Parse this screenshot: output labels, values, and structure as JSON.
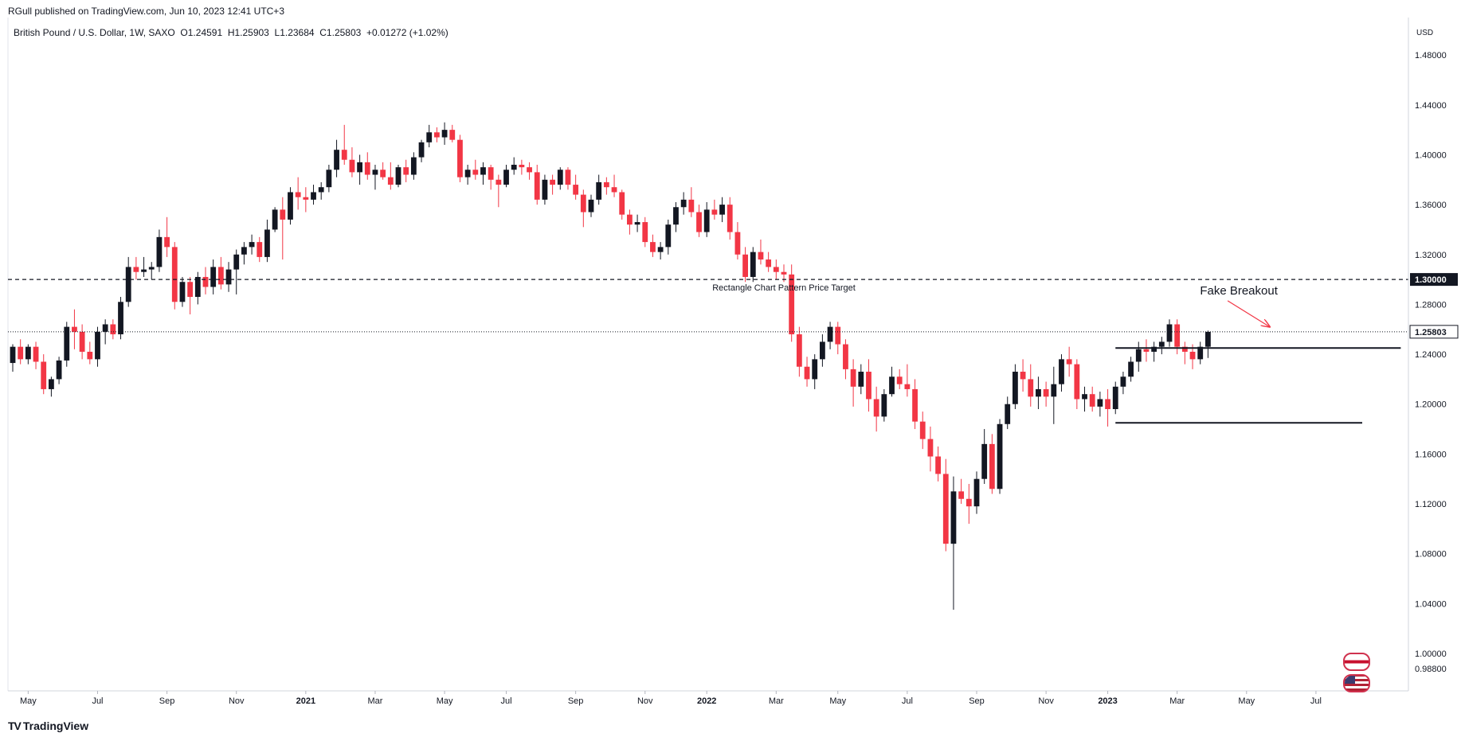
{
  "header": {
    "publisher": "RGull published on TradingView.com, Jun 10, 2023 12:41 UTC+3"
  },
  "legend": {
    "symbol": "British Pound / U.S. Dollar, 1W, SAXO",
    "open": "O1.24591",
    "high": "H1.25903",
    "low": "L1.23684",
    "close": "C1.25803",
    "change": "+0.01272 (+1.02%)"
  },
  "footer": {
    "brand": "TradingView",
    "brand_mark": "TV"
  },
  "flags": [
    "gb-flag-icon",
    "us-flag-icon"
  ],
  "colors": {
    "up": "#131722",
    "down": "#f23645",
    "arrow": "#f23645",
    "grid": "#f0f3fa"
  },
  "chart_data": {
    "type": "candlestick",
    "axis_currency": "USD",
    "ylim": [
      0.97,
      1.505
    ],
    "y_ticks": [
      "1.48000",
      "1.44000",
      "1.40000",
      "1.36000",
      "1.32000",
      "1.28000",
      "1.24000",
      "1.20000",
      "1.16000",
      "1.12000",
      "1.08000",
      "1.04000",
      "1.00000",
      "0.98800"
    ],
    "y_tick_values": [
      1.48,
      1.44,
      1.4,
      1.36,
      1.32,
      1.28,
      1.24,
      1.2,
      1.16,
      1.12,
      1.08,
      1.04,
      1.0,
      0.988
    ],
    "x_ticks": [
      {
        "label": "May",
        "bar": 2,
        "bold": false
      },
      {
        "label": "Jul",
        "bar": 11,
        "bold": false
      },
      {
        "label": "Sep",
        "bar": 20,
        "bold": false
      },
      {
        "label": "Nov",
        "bar": 29,
        "bold": false
      },
      {
        "label": "2021",
        "bar": 38,
        "bold": true
      },
      {
        "label": "Mar",
        "bar": 47,
        "bold": false
      },
      {
        "label": "May",
        "bar": 56,
        "bold": false
      },
      {
        "label": "Jul",
        "bar": 64,
        "bold": false
      },
      {
        "label": "Sep",
        "bar": 73,
        "bold": false
      },
      {
        "label": "Nov",
        "bar": 82,
        "bold": false
      },
      {
        "label": "2022",
        "bar": 90,
        "bold": true
      },
      {
        "label": "Mar",
        "bar": 99,
        "bold": false
      },
      {
        "label": "May",
        "bar": 107,
        "bold": false
      },
      {
        "label": "Jul",
        "bar": 116,
        "bold": false
      },
      {
        "label": "Sep",
        "bar": 125,
        "bold": false
      },
      {
        "label": "Nov",
        "bar": 134,
        "bold": false
      },
      {
        "label": "2023",
        "bar": 142,
        "bold": true
      },
      {
        "label": "Mar",
        "bar": 151,
        "bold": false
      },
      {
        "label": "May",
        "bar": 160,
        "bold": false
      },
      {
        "label": "Jul",
        "bar": 169,
        "bold": false
      }
    ],
    "candles": [
      [
        1.233,
        1.248,
        1.226,
        1.246
      ],
      [
        1.246,
        1.252,
        1.232,
        1.236
      ],
      [
        1.236,
        1.248,
        1.232,
        1.246
      ],
      [
        1.246,
        1.25,
        1.228,
        1.234
      ],
      [
        1.234,
        1.24,
        1.208,
        1.212
      ],
      [
        1.212,
        1.222,
        1.206,
        1.22
      ],
      [
        1.22,
        1.238,
        1.216,
        1.235
      ],
      [
        1.235,
        1.266,
        1.23,
        1.262
      ],
      [
        1.262,
        1.276,
        1.244,
        1.258
      ],
      [
        1.258,
        1.264,
        1.236,
        1.242
      ],
      [
        1.242,
        1.25,
        1.232,
        1.236
      ],
      [
        1.236,
        1.262,
        1.23,
        1.258
      ],
      [
        1.258,
        1.268,
        1.248,
        1.264
      ],
      [
        1.264,
        1.268,
        1.252,
        1.256
      ],
      [
        1.256,
        1.286,
        1.252,
        1.282
      ],
      [
        1.282,
        1.318,
        1.278,
        1.31
      ],
      [
        1.31,
        1.318,
        1.3,
        1.306
      ],
      [
        1.306,
        1.318,
        1.302,
        1.308
      ],
      [
        1.308,
        1.314,
        1.3,
        1.31
      ],
      [
        1.31,
        1.34,
        1.306,
        1.334
      ],
      [
        1.334,
        1.35,
        1.318,
        1.326
      ],
      [
        1.326,
        1.33,
        1.276,
        1.282
      ],
      [
        1.282,
        1.302,
        1.278,
        1.298
      ],
      [
        1.298,
        1.302,
        1.272,
        1.286
      ],
      [
        1.286,
        1.306,
        1.28,
        1.302
      ],
      [
        1.302,
        1.31,
        1.288,
        1.294
      ],
      [
        1.294,
        1.316,
        1.288,
        1.31
      ],
      [
        1.31,
        1.318,
        1.292,
        1.296
      ],
      [
        1.296,
        1.314,
        1.29,
        1.308
      ],
      [
        1.308,
        1.324,
        1.288,
        1.32
      ],
      [
        1.32,
        1.33,
        1.312,
        1.326
      ],
      [
        1.326,
        1.336,
        1.32,
        1.33
      ],
      [
        1.33,
        1.334,
        1.314,
        1.318
      ],
      [
        1.318,
        1.348,
        1.314,
        1.34
      ],
      [
        1.34,
        1.358,
        1.338,
        1.356
      ],
      [
        1.356,
        1.366,
        1.316,
        1.348
      ],
      [
        1.348,
        1.374,
        1.344,
        1.37
      ],
      [
        1.37,
        1.382,
        1.356,
        1.366
      ],
      [
        1.366,
        1.374,
        1.354,
        1.364
      ],
      [
        1.364,
        1.376,
        1.36,
        1.37
      ],
      [
        1.37,
        1.378,
        1.364,
        1.374
      ],
      [
        1.374,
        1.392,
        1.37,
        1.388
      ],
      [
        1.388,
        1.412,
        1.382,
        1.404
      ],
      [
        1.404,
        1.424,
        1.392,
        1.396
      ],
      [
        1.396,
        1.406,
        1.382,
        1.386
      ],
      [
        1.386,
        1.4,
        1.376,
        1.394
      ],
      [
        1.394,
        1.402,
        1.38,
        1.384
      ],
      [
        1.384,
        1.392,
        1.372,
        1.388
      ],
      [
        1.388,
        1.394,
        1.38,
        1.382
      ],
      [
        1.382,
        1.394,
        1.372,
        1.376
      ],
      [
        1.376,
        1.392,
        1.374,
        1.39
      ],
      [
        1.39,
        1.396,
        1.378,
        1.384
      ],
      [
        1.384,
        1.402,
        1.38,
        1.398
      ],
      [
        1.398,
        1.412,
        1.394,
        1.41
      ],
      [
        1.41,
        1.424,
        1.406,
        1.418
      ],
      [
        1.418,
        1.422,
        1.41,
        1.414
      ],
      [
        1.414,
        1.426,
        1.408,
        1.42
      ],
      [
        1.42,
        1.424,
        1.41,
        1.412
      ],
      [
        1.412,
        1.416,
        1.378,
        1.382
      ],
      [
        1.382,
        1.392,
        1.376,
        1.388
      ],
      [
        1.388,
        1.396,
        1.38,
        1.384
      ],
      [
        1.384,
        1.394,
        1.376,
        1.39
      ],
      [
        1.39,
        1.392,
        1.372,
        1.38
      ],
      [
        1.38,
        1.384,
        1.358,
        1.376
      ],
      [
        1.376,
        1.392,
        1.374,
        1.388
      ],
      [
        1.388,
        1.398,
        1.384,
        1.392
      ],
      [
        1.392,
        1.396,
        1.384,
        1.39
      ],
      [
        1.39,
        1.394,
        1.38,
        1.386
      ],
      [
        1.386,
        1.392,
        1.36,
        1.364
      ],
      [
        1.364,
        1.384,
        1.36,
        1.38
      ],
      [
        1.38,
        1.384,
        1.368,
        1.376
      ],
      [
        1.376,
        1.39,
        1.372,
        1.388
      ],
      [
        1.388,
        1.39,
        1.372,
        1.376
      ],
      [
        1.376,
        1.384,
        1.364,
        1.368
      ],
      [
        1.368,
        1.372,
        1.342,
        1.354
      ],
      [
        1.354,
        1.368,
        1.35,
        1.364
      ],
      [
        1.364,
        1.384,
        1.36,
        1.378
      ],
      [
        1.378,
        1.382,
        1.368,
        1.374
      ],
      [
        1.374,
        1.384,
        1.366,
        1.37
      ],
      [
        1.37,
        1.372,
        1.348,
        1.352
      ],
      [
        1.352,
        1.356,
        1.336,
        1.344
      ],
      [
        1.344,
        1.352,
        1.338,
        1.346
      ],
      [
        1.346,
        1.35,
        1.326,
        1.33
      ],
      [
        1.33,
        1.336,
        1.318,
        1.322
      ],
      [
        1.322,
        1.33,
        1.316,
        1.326
      ],
      [
        1.326,
        1.348,
        1.32,
        1.344
      ],
      [
        1.344,
        1.362,
        1.338,
        1.358
      ],
      [
        1.358,
        1.37,
        1.352,
        1.364
      ],
      [
        1.364,
        1.374,
        1.35,
        1.354
      ],
      [
        1.354,
        1.36,
        1.334,
        1.338
      ],
      [
        1.338,
        1.362,
        1.334,
        1.356
      ],
      [
        1.356,
        1.364,
        1.348,
        1.352
      ],
      [
        1.352,
        1.366,
        1.346,
        1.36
      ],
      [
        1.36,
        1.366,
        1.332,
        1.338
      ],
      [
        1.338,
        1.346,
        1.316,
        1.32
      ],
      [
        1.32,
        1.326,
        1.298,
        1.302
      ],
      [
        1.302,
        1.326,
        1.298,
        1.322
      ],
      [
        1.322,
        1.332,
        1.312,
        1.316
      ],
      [
        1.316,
        1.322,
        1.306,
        1.31
      ],
      [
        1.31,
        1.316,
        1.3,
        1.306
      ],
      [
        1.306,
        1.312,
        1.298,
        1.304
      ],
      [
        1.304,
        1.312,
        1.25,
        1.256
      ],
      [
        1.256,
        1.262,
        1.222,
        1.23
      ],
      [
        1.23,
        1.238,
        1.214,
        1.22
      ],
      [
        1.22,
        1.24,
        1.212,
        1.236
      ],
      [
        1.236,
        1.256,
        1.23,
        1.25
      ],
      [
        1.25,
        1.266,
        1.244,
        1.262
      ],
      [
        1.262,
        1.266,
        1.24,
        1.248
      ],
      [
        1.248,
        1.252,
        1.22,
        1.228
      ],
      [
        1.228,
        1.236,
        1.198,
        1.214
      ],
      [
        1.214,
        1.232,
        1.208,
        1.226
      ],
      [
        1.226,
        1.236,
        1.194,
        1.204
      ],
      [
        1.204,
        1.214,
        1.178,
        1.19
      ],
      [
        1.19,
        1.212,
        1.186,
        1.208
      ],
      [
        1.208,
        1.23,
        1.206,
        1.222
      ],
      [
        1.222,
        1.228,
        1.212,
        1.216
      ],
      [
        1.216,
        1.232,
        1.206,
        1.212
      ],
      [
        1.212,
        1.22,
        1.18,
        1.186
      ],
      [
        1.186,
        1.194,
        1.164,
        1.172
      ],
      [
        1.172,
        1.182,
        1.146,
        1.158
      ],
      [
        1.158,
        1.166,
        1.138,
        1.144
      ],
      [
        1.144,
        1.156,
        1.082,
        1.088
      ],
      [
        1.088,
        1.142,
        1.035,
        1.13
      ],
      [
        1.13,
        1.14,
        1.12,
        1.124
      ],
      [
        1.124,
        1.136,
        1.104,
        1.118
      ],
      [
        1.118,
        1.146,
        1.112,
        1.14
      ],
      [
        1.14,
        1.18,
        1.136,
        1.168
      ],
      [
        1.168,
        1.176,
        1.128,
        1.132
      ],
      [
        1.132,
        1.188,
        1.128,
        1.184
      ],
      [
        1.184,
        1.206,
        1.18,
        1.2
      ],
      [
        1.2,
        1.232,
        1.196,
        1.226
      ],
      [
        1.226,
        1.236,
        1.21,
        1.22
      ],
      [
        1.22,
        1.232,
        1.198,
        1.206
      ],
      [
        1.206,
        1.222,
        1.196,
        1.212
      ],
      [
        1.212,
        1.218,
        1.198,
        1.206
      ],
      [
        1.206,
        1.23,
        1.184,
        1.216
      ],
      [
        1.216,
        1.24,
        1.21,
        1.236
      ],
      [
        1.236,
        1.246,
        1.222,
        1.232
      ],
      [
        1.232,
        1.236,
        1.196,
        1.204
      ],
      [
        1.204,
        1.214,
        1.194,
        1.208
      ],
      [
        1.208,
        1.214,
        1.194,
        1.198
      ],
      [
        1.198,
        1.21,
        1.19,
        1.204
      ],
      [
        1.204,
        1.212,
        1.182,
        1.196
      ],
      [
        1.196,
        1.218,
        1.192,
        1.214
      ],
      [
        1.214,
        1.226,
        1.208,
        1.222
      ],
      [
        1.222,
        1.238,
        1.218,
        1.234
      ],
      [
        1.234,
        1.25,
        1.226,
        1.244
      ],
      [
        1.244,
        1.252,
        1.234,
        1.242
      ],
      [
        1.242,
        1.25,
        1.234,
        1.246
      ],
      [
        1.246,
        1.254,
        1.24,
        1.25
      ],
      [
        1.25,
        1.268,
        1.246,
        1.264
      ],
      [
        1.264,
        1.268,
        1.24,
        1.246
      ],
      [
        1.246,
        1.25,
        1.232,
        1.242
      ],
      [
        1.242,
        1.248,
        1.228,
        1.236
      ],
      [
        1.236,
        1.25,
        1.232,
        1.246
      ],
      [
        1.246,
        1.259,
        1.237,
        1.258
      ]
    ],
    "current_price": {
      "value": 1.25803,
      "label": "1.25803"
    },
    "horizontal_lines": [
      {
        "y": 1.3,
        "style": "dashed",
        "label": "1.30000",
        "annotation": "Rectangle Chart Pattern Price Target",
        "annotation_x_bar": 100
      },
      {
        "y": 1.245,
        "style": "solid",
        "x_from_bar": 143,
        "x_to_bar": 180
      },
      {
        "y": 1.185,
        "style": "solid",
        "x_from_bar": 143,
        "x_to_bar": 175
      }
    ],
    "annotations": [
      {
        "text": "Fake Breakout",
        "x_bar": 159,
        "y": 1.288,
        "arrow_to_bar": 163,
        "arrow_to_y": 1.262
      }
    ]
  }
}
